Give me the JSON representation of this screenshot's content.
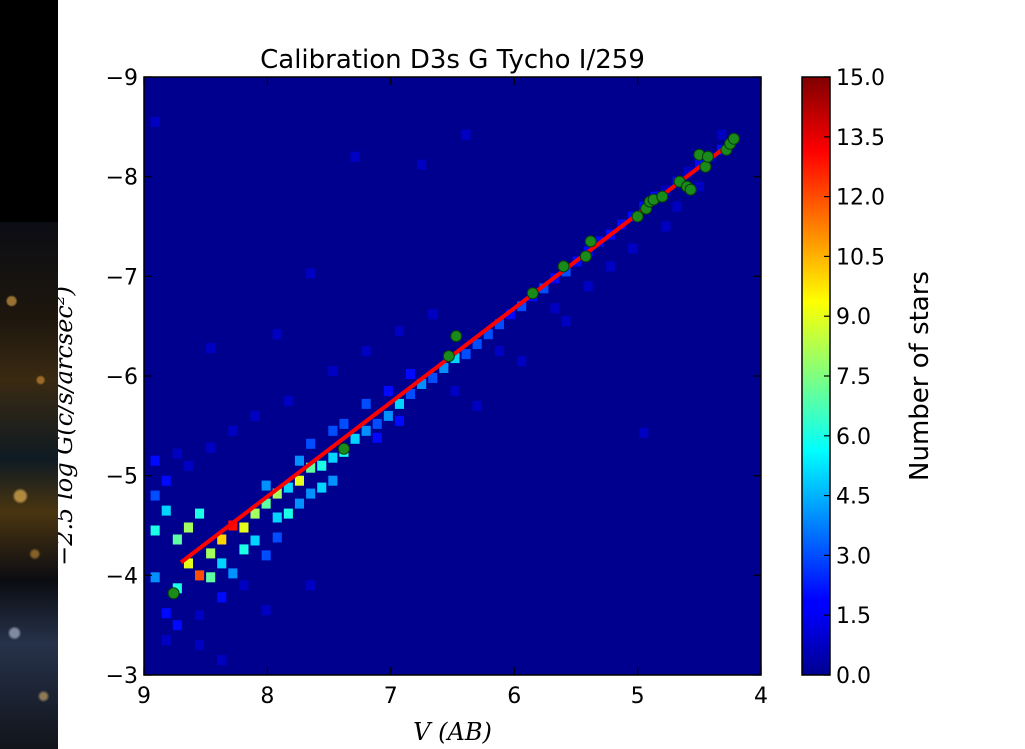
{
  "chart_data": {
    "type": "heatmap",
    "title": "Calibration D3s G Tycho I/259",
    "xlabel": "V (AB)",
    "ylabel": "−2.5 log G(c/s/arcsec²)",
    "xlim": [
      9,
      4
    ],
    "ylim": [
      -3,
      -9
    ],
    "x_ticks": [
      9,
      8,
      7,
      6,
      5,
      4
    ],
    "y_ticks": [
      -9,
      -8,
      -7,
      -6,
      -5,
      -4,
      -3
    ],
    "x_tick_labels": [
      "9",
      "8",
      "7",
      "6",
      "5",
      "4"
    ],
    "y_tick_labels": [
      "−9",
      "−8",
      "−7",
      "−6",
      "−5",
      "−4",
      "−3"
    ],
    "colorbar": {
      "label": "Number of stars",
      "range": [
        0,
        15
      ],
      "tick_labels": [
        "0.0",
        "1.5",
        "3.0",
        "4.5",
        "6.0",
        "7.5",
        "9.0",
        "10.5",
        "12.0",
        "13.5",
        "15.0"
      ],
      "colormap": "jet"
    },
    "background_color": "#00008f",
    "fit_line": {
      "name": "",
      "color": "#ff0000",
      "x": [
        8.7,
        4.2
      ],
      "y": [
        -4.13,
        -8.38
      ]
    },
    "highlighted_stars": {
      "color": "#1a8a1a",
      "x": [
        8.76,
        7.38,
        6.53,
        6.47,
        5.85,
        5.6,
        5.42,
        5.38,
        5.0,
        4.93,
        4.9,
        4.87,
        4.8,
        4.66,
        4.6,
        4.57,
        4.5,
        4.45,
        4.43,
        4.28,
        4.25,
        4.22
      ],
      "y": [
        -3.82,
        -5.27,
        -6.2,
        -6.4,
        -6.83,
        -7.1,
        -7.2,
        -7.35,
        -7.6,
        -7.68,
        -7.75,
        -7.77,
        -7.8,
        -7.95,
        -7.9,
        -7.87,
        -8.22,
        -8.1,
        -8.2,
        -8.27,
        -8.33,
        -8.38
      ]
    },
    "density_bins": [
      [
        8.82,
        -3.62,
        2
      ],
      [
        8.73,
        -3.87,
        6
      ],
      [
        8.64,
        -4.12,
        9
      ],
      [
        8.55,
        -4.0,
        12
      ],
      [
        8.46,
        -4.22,
        8
      ],
      [
        8.37,
        -4.36,
        10
      ],
      [
        8.28,
        -4.5,
        13
      ],
      [
        8.19,
        -4.48,
        9
      ],
      [
        8.1,
        -4.62,
        8
      ],
      [
        8.01,
        -4.72,
        7
      ],
      [
        7.92,
        -4.82,
        8
      ],
      [
        7.83,
        -4.88,
        5
      ],
      [
        7.74,
        -4.95,
        9
      ],
      [
        7.65,
        -5.08,
        7
      ],
      [
        7.56,
        -5.1,
        6
      ],
      [
        7.47,
        -5.18,
        5
      ],
      [
        7.38,
        -5.24,
        6
      ],
      [
        7.29,
        -5.37,
        5
      ],
      [
        7.2,
        -5.45,
        4
      ],
      [
        7.11,
        -5.52,
        3
      ],
      [
        7.02,
        -5.6,
        4
      ],
      [
        6.93,
        -5.72,
        5
      ],
      [
        6.84,
        -5.82,
        3
      ],
      [
        6.75,
        -5.92,
        4
      ],
      [
        6.66,
        -5.98,
        3
      ],
      [
        6.57,
        -6.08,
        4
      ],
      [
        6.48,
        -6.18,
        5
      ],
      [
        6.39,
        -6.22,
        3
      ],
      [
        6.3,
        -6.32,
        3
      ],
      [
        6.21,
        -6.42,
        3
      ],
      [
        6.12,
        -6.52,
        3
      ],
      [
        6.03,
        -6.62,
        2
      ],
      [
        5.94,
        -6.7,
        3
      ],
      [
        5.85,
        -6.8,
        2
      ],
      [
        5.76,
        -6.88,
        3
      ],
      [
        5.67,
        -6.98,
        2
      ],
      [
        5.58,
        -7.05,
        3
      ],
      [
        5.49,
        -7.15,
        2
      ],
      [
        5.4,
        -7.25,
        2
      ],
      [
        5.31,
        -7.35,
        2
      ],
      [
        5.22,
        -7.42,
        2
      ],
      [
        5.13,
        -7.52,
        2
      ],
      [
        5.04,
        -7.6,
        2
      ],
      [
        4.95,
        -7.7,
        2
      ],
      [
        4.86,
        -7.8,
        2
      ],
      [
        4.77,
        -7.86,
        1
      ],
      [
        4.68,
        -7.95,
        2
      ],
      [
        4.59,
        -8.05,
        1
      ],
      [
        4.5,
        -8.12,
        2
      ],
      [
        4.41,
        -8.2,
        1
      ],
      [
        4.32,
        -8.27,
        2
      ],
      [
        8.91,
        -4.45,
        6
      ],
      [
        8.82,
        -4.65,
        5
      ],
      [
        8.73,
        -4.36,
        7
      ],
      [
        8.91,
        -3.98,
        4
      ],
      [
        8.64,
        -4.48,
        8
      ],
      [
        8.55,
        -4.62,
        6
      ],
      [
        8.46,
        -3.98,
        7
      ],
      [
        8.37,
        -4.12,
        5
      ],
      [
        8.28,
        -4.02,
        4
      ],
      [
        8.19,
        -4.26,
        6
      ],
      [
        8.1,
        -4.35,
        5
      ],
      [
        8.01,
        -4.9,
        4
      ],
      [
        7.92,
        -4.58,
        5
      ],
      [
        7.83,
        -4.62,
        6
      ],
      [
        7.74,
        -4.72,
        4
      ],
      [
        7.65,
        -4.82,
        4
      ],
      [
        7.56,
        -4.88,
        5
      ],
      [
        7.47,
        -4.95,
        4
      ],
      [
        8.01,
        -4.2,
        3
      ],
      [
        7.92,
        -4.38,
        3
      ],
      [
        7.74,
        -5.15,
        4
      ],
      [
        7.65,
        -5.32,
        3
      ],
      [
        7.47,
        -5.45,
        3
      ],
      [
        7.38,
        -5.52,
        3
      ],
      [
        7.2,
        -5.72,
        3
      ],
      [
        7.02,
        -5.85,
        2
      ],
      [
        6.84,
        -6.02,
        2
      ],
      [
        6.93,
        -5.55,
        2
      ],
      [
        7.11,
        -5.38,
        2
      ],
      [
        8.82,
        -3.35,
        1
      ],
      [
        8.73,
        -3.5,
        2
      ],
      [
        8.55,
        -3.6,
        1
      ],
      [
        8.37,
        -3.78,
        2
      ],
      [
        8.19,
        -3.9,
        1
      ],
      [
        8.91,
        -4.8,
        3
      ],
      [
        8.82,
        -4.95,
        2
      ],
      [
        8.64,
        -5.1,
        1
      ],
      [
        8.46,
        -5.28,
        1
      ],
      [
        8.28,
        -5.45,
        1
      ],
      [
        8.1,
        -5.6,
        1
      ],
      [
        7.83,
        -5.75,
        1
      ],
      [
        7.47,
        -6.05,
        1
      ],
      [
        7.2,
        -6.25,
        1
      ],
      [
        6.93,
        -6.45,
        1
      ],
      [
        6.66,
        -6.62,
        1
      ],
      [
        8.91,
        -5.15,
        2
      ],
      [
        8.73,
        -5.22,
        1
      ],
      [
        8.55,
        -3.3,
        1
      ],
      [
        8.01,
        -3.65,
        1
      ],
      [
        7.65,
        -3.9,
        1
      ],
      [
        6.3,
        -5.7,
        1
      ],
      [
        5.94,
        -6.15,
        1
      ],
      [
        5.58,
        -6.55,
        1
      ],
      [
        5.04,
        -7.28,
        1
      ],
      [
        4.77,
        -7.5,
        1
      ],
      [
        4.68,
        -7.7,
        1
      ],
      [
        4.5,
        -7.9,
        1
      ],
      [
        5.22,
        -7.1,
        1
      ],
      [
        5.4,
        -6.9,
        1
      ],
      [
        5.67,
        -6.68,
        1
      ],
      [
        6.12,
        -6.25,
        1
      ],
      [
        6.48,
        -5.85,
        1
      ],
      [
        4.95,
        -5.43,
        1
      ],
      [
        7.29,
        -8.2,
        1
      ],
      [
        6.39,
        -8.42,
        1
      ],
      [
        8.91,
        -8.55,
        1
      ],
      [
        7.65,
        -7.03,
        1
      ],
      [
        6.75,
        -8.12,
        1
      ],
      [
        4.32,
        -8.42,
        1
      ],
      [
        7.92,
        -6.42,
        1
      ],
      [
        8.46,
        -6.28,
        1
      ],
      [
        8.37,
        -3.15,
        1
      ]
    ]
  }
}
